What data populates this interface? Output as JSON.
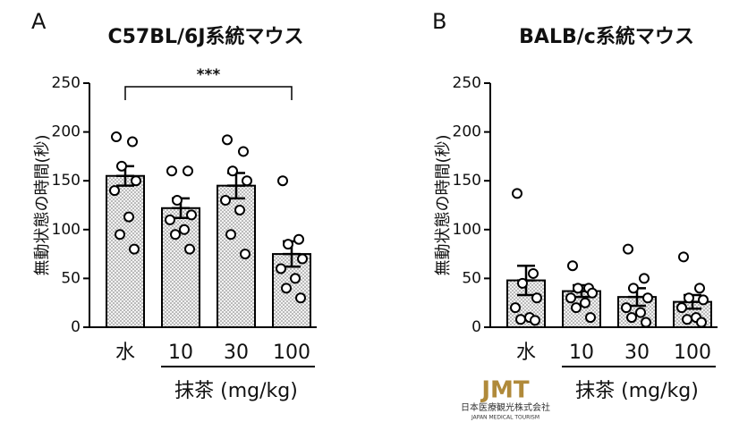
{
  "chart_data": [
    {
      "type": "bar",
      "panel": "A",
      "title": "C57BL/6J系統マウス",
      "ylabel": "無動状態の時間(秒)",
      "categories": [
        "水",
        "10",
        "30",
        "100"
      ],
      "xlabel": "抹茶 (mg/kg)",
      "values": [
        155,
        122,
        145,
        75
      ],
      "errors": [
        10,
        10,
        13,
        13
      ],
      "points": [
        [
          195,
          190,
          165,
          150,
          140,
          113,
          95,
          80
        ],
        [
          160,
          160,
          130,
          115,
          110,
          100,
          95,
          80
        ],
        [
          192,
          180,
          160,
          150,
          130,
          120,
          95,
          75
        ],
        [
          150,
          90,
          85,
          70,
          60,
          50,
          40,
          30
        ]
      ],
      "significance": "***",
      "ylim": [
        0,
        250
      ],
      "yticks": [
        0,
        50,
        100,
        150,
        200,
        250
      ]
    },
    {
      "type": "bar",
      "panel": "B",
      "title": "BALB/c系統マウス",
      "ylabel": "無動状態の時間(秒)",
      "categories": [
        "水",
        "10",
        "30",
        "100"
      ],
      "xlabel": "抹茶 (mg/kg)",
      "values": [
        48,
        37,
        31,
        26
      ],
      "errors": [
        15,
        6,
        9,
        7
      ],
      "points": [
        [
          137,
          55,
          45,
          30,
          20,
          10,
          8,
          7
        ],
        [
          63,
          40,
          40,
          35,
          30,
          25,
          20,
          10
        ],
        [
          80,
          50,
          40,
          30,
          20,
          15,
          10,
          5
        ],
        [
          72,
          40,
          30,
          28,
          20,
          10,
          8,
          5
        ]
      ],
      "ylim": [
        0,
        250
      ],
      "yticks": [
        0,
        50,
        100,
        150,
        200,
        250
      ]
    }
  ],
  "watermark": {
    "logo": "JMT",
    "name": "日本医療観光株式会社",
    "english": "JAPAN MEDICAL TOURISM"
  }
}
